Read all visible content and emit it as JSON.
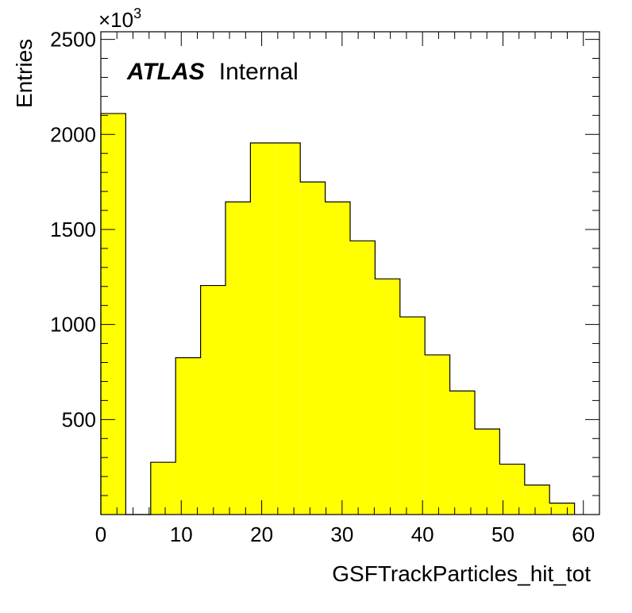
{
  "chart_data": {
    "type": "bar",
    "histogram_style": "step-filled",
    "fill_color": "#ffff00",
    "edge_color": "#000000",
    "xlabel": "GSFTrackParticles_hit_tot",
    "ylabel": "Entries",
    "y_multiplier": "×10",
    "y_multiplier_exp": "3",
    "annotation": {
      "bold": "ATLAS",
      "text": "Internal"
    },
    "xlim": [
      0,
      62
    ],
    "ylim": [
      0,
      2540
    ],
    "x_major_ticks": [
      0,
      10,
      20,
      30,
      40,
      50,
      60
    ],
    "x_tick_labels": [
      "0",
      "10",
      "20",
      "30",
      "40",
      "50",
      "60"
    ],
    "y_major_ticks": [
      500,
      1000,
      1500,
      2000,
      2500
    ],
    "y_tick_labels": [
      "500",
      "1000",
      "1500",
      "2000",
      "2500"
    ],
    "bin_edges": [
      0,
      3.1,
      6.2,
      9.3,
      12.4,
      15.5,
      18.6,
      21.7,
      24.8,
      27.9,
      31.0,
      34.1,
      37.2,
      40.3,
      43.4,
      46.5,
      49.6,
      52.7,
      55.8,
      58.9
    ],
    "values": [
      2110,
      0,
      275,
      825,
      1205,
      1645,
      1955,
      1955,
      1750,
      1645,
      1440,
      1240,
      1040,
      840,
      650,
      450,
      265,
      155,
      60
    ]
  }
}
